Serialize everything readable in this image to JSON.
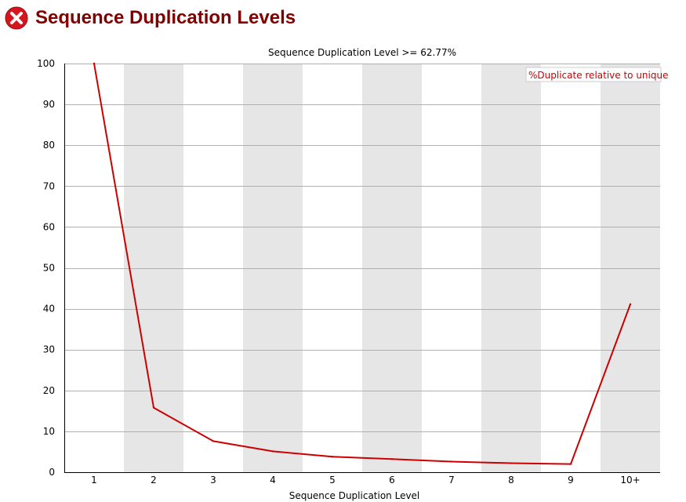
{
  "page": {
    "title": "Sequence Duplication Levels",
    "status_icon": "error-icon",
    "status_color": "#d7151c",
    "title_color": "#800000"
  },
  "chart_data": {
    "type": "line",
    "title": "Sequence Duplication Level >= 62.77%",
    "xlabel": "Sequence Duplication Level",
    "ylabel": "",
    "categories": [
      "1",
      "2",
      "3",
      "4",
      "5",
      "6",
      "7",
      "8",
      "9",
      "10+"
    ],
    "series": [
      {
        "name": "%Duplicate relative to unique",
        "color": "#cc0000",
        "values": [
          100,
          15.8,
          7.6,
          5.1,
          3.8,
          3.2,
          2.6,
          2.2,
          2.0,
          41.1
        ]
      }
    ],
    "ylim": [
      0,
      100
    ],
    "yticks": [
      0,
      10,
      20,
      30,
      40,
      50,
      60,
      70,
      80,
      90,
      100
    ],
    "grid": true,
    "alternating_bands": true,
    "band_color": "#e6e6e6",
    "legend_placement": "top-right"
  }
}
